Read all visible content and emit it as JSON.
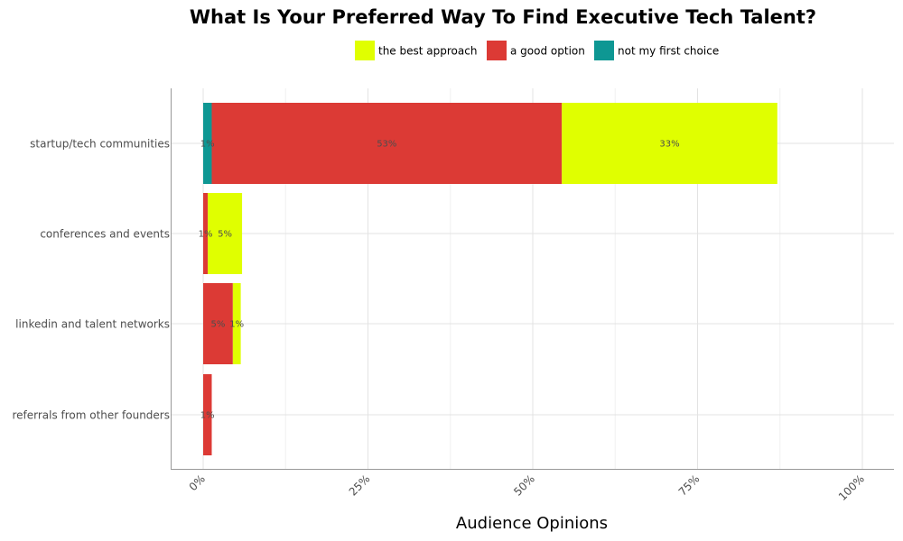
{
  "chart_data": {
    "type": "bar",
    "orientation": "horizontal",
    "stacked": true,
    "title": "What Is Your Preferred Way To Find Executive Tech Talent?",
    "xlabel": "Audience Opinions",
    "ylabel": "",
    "xlim": [
      0,
      100
    ],
    "x_ticks": [
      "0%",
      "25%",
      "50%",
      "75%",
      "100%"
    ],
    "grid": true,
    "legend_position": "top",
    "categories": [
      "startup/tech communities",
      "conferences and events",
      "linkedin and talent networks",
      "referrals from other founders"
    ],
    "series": [
      {
        "name": "not my first choice",
        "color": "#0e9793",
        "values": [
          1.3,
          0,
          0,
          0
        ],
        "labels": [
          "1%",
          "",
          "",
          ""
        ]
      },
      {
        "name": "a good option",
        "color": "#dc3a35",
        "values": [
          53.1,
          0.7,
          4.5,
          1.3
        ],
        "labels": [
          "53%",
          "1%",
          "5%",
          "1%"
        ]
      },
      {
        "name": "the best approach",
        "color": "#e0ff00",
        "values": [
          32.7,
          5.2,
          1.2,
          0
        ],
        "labels": [
          "33%",
          "5%",
          "1%",
          ""
        ]
      }
    ],
    "legend_order": [
      "the best approach",
      "a good option",
      "not my first choice"
    ]
  }
}
